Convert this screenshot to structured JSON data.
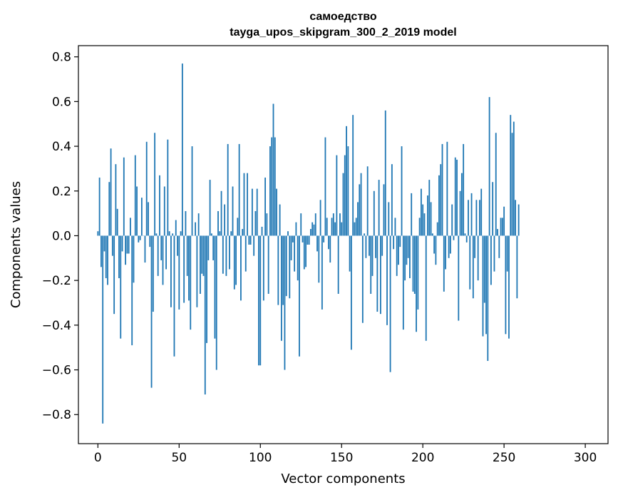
{
  "chart_data": {
    "type": "bar",
    "title_lines": [
      "самоедство",
      "tayga_upos_skipgram_300_2_2019 model"
    ],
    "xlabel": "Vector components",
    "ylabel": "Components values",
    "xlim": [
      -12,
      314
    ],
    "ylim": [
      -0.93,
      0.85
    ],
    "xticks": [
      0,
      50,
      100,
      150,
      200,
      250,
      300
    ],
    "yticks": [
      -0.8,
      -0.6,
      -0.4,
      -0.2,
      0.0,
      0.2,
      0.4,
      0.6,
      0.8
    ],
    "ytick_labels": [
      "−0.8",
      "−0.6",
      "−0.4",
      "−0.2",
      "0.0",
      "0.2",
      "0.4",
      "0.6",
      "0.8"
    ],
    "grid": false,
    "bar_color": "#1f77b4",
    "values": [
      0.02,
      0.26,
      -0.14,
      -0.84,
      -0.07,
      -0.19,
      -0.22,
      0.24,
      0.39,
      -0.09,
      -0.35,
      0.32,
      0.12,
      -0.19,
      -0.46,
      -0.07,
      0.35,
      -0.13,
      -0.08,
      -0.08,
      0.08,
      -0.49,
      -0.21,
      0.36,
      0.22,
      -0.03,
      -0.02,
      0.17,
      0.0,
      -0.12,
      0.42,
      0.15,
      -0.05,
      -0.68,
      -0.34,
      0.46,
      0.01,
      -0.18,
      0.27,
      -0.11,
      -0.22,
      0.22,
      -0.15,
      0.43,
      0.02,
      -0.32,
      0.01,
      -0.54,
      0.07,
      -0.09,
      -0.33,
      0.02,
      0.77,
      -0.3,
      0.11,
      -0.18,
      -0.29,
      -0.42,
      0.4,
      0.0,
      0.06,
      -0.32,
      0.1,
      -0.26,
      -0.17,
      -0.18,
      -0.71,
      -0.48,
      -0.11,
      0.25,
      0.01,
      -0.11,
      -0.46,
      -0.6,
      0.11,
      0.02,
      0.2,
      -0.17,
      0.14,
      -0.18,
      0.41,
      -0.15,
      0.02,
      0.22,
      -0.24,
      -0.22,
      0.08,
      0.41,
      -0.29,
      0.03,
      0.28,
      -0.16,
      0.28,
      -0.04,
      -0.04,
      0.21,
      -0.09,
      0.11,
      0.21,
      -0.58,
      -0.58,
      0.04,
      -0.29,
      0.26,
      0.1,
      -0.26,
      0.4,
      0.44,
      0.59,
      0.44,
      0.21,
      -0.31,
      0.14,
      -0.47,
      -0.31,
      -0.6,
      -0.27,
      0.02,
      -0.28,
      -0.11,
      -0.03,
      -0.16,
      0.06,
      -0.2,
      -0.54,
      0.1,
      -0.03,
      -0.15,
      -0.14,
      -0.04,
      -0.04,
      0.03,
      0.06,
      0.05,
      0.1,
      -0.07,
      -0.21,
      0.16,
      -0.33,
      -0.03,
      0.44,
      0.08,
      -0.06,
      -0.12,
      0.08,
      0.1,
      0.06,
      0.36,
      -0.26,
      0.1,
      0.06,
      0.28,
      0.36,
      0.49,
      0.4,
      -0.16,
      -0.51,
      0.54,
      0.06,
      0.08,
      0.15,
      0.23,
      0.28,
      -0.39,
      0.01,
      -0.1,
      0.31,
      -0.09,
      -0.26,
      -0.18,
      0.2,
      -0.1,
      -0.34,
      0.25,
      -0.35,
      -0.09,
      0.23,
      0.56,
      -0.4,
      0.15,
      -0.61,
      0.32,
      -0.06,
      0.08,
      -0.18,
      -0.13,
      -0.05,
      0.4,
      -0.42,
      -0.2,
      -0.13,
      -0.1,
      -0.19,
      0.19,
      -0.25,
      -0.26,
      -0.43,
      -0.33,
      0.08,
      0.21,
      0.14,
      0.1,
      -0.47,
      0.18,
      0.25,
      0.15,
      0.01,
      -0.08,
      -0.13,
      0.06,
      0.27,
      0.32,
      0.41,
      -0.25,
      -0.15,
      0.42,
      -0.1,
      -0.08,
      0.14,
      -0.02,
      0.35,
      0.34,
      -0.38,
      0.2,
      0.28,
      0.41,
      0.01,
      -0.03,
      0.16,
      -0.24,
      0.19,
      -0.28,
      -0.1,
      0.16,
      -0.2,
      0.16,
      0.21,
      -0.45,
      -0.3,
      -0.44,
      -0.56,
      0.62,
      -0.22,
      0.24,
      -0.16,
      0.46,
      0.03,
      -0.1,
      0.08,
      0.08,
      0.13,
      -0.44,
      -0.16,
      -0.46,
      0.54,
      0.46,
      0.51,
      0.16,
      -0.28,
      0.14
    ]
  }
}
